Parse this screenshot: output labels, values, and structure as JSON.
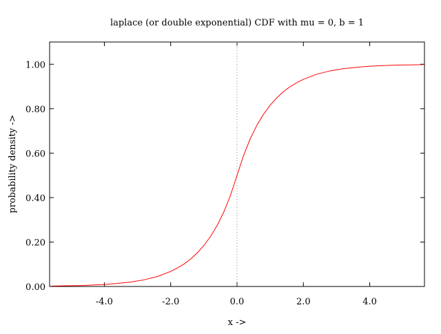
{
  "chart_data": {
    "type": "line",
    "title": "laplace (or double exponential) CDF with mu = 0, b = 1",
    "xlabel": "x ->",
    "ylabel": "probability density ->",
    "xlim": [
      -5.65,
      5.65
    ],
    "ylim": [
      0.0,
      1.1
    ],
    "x_ticks": [
      -4.0,
      -2.0,
      0.0,
      2.0,
      4.0
    ],
    "x_tick_labels": [
      "-4.0",
      "-2.0",
      "0.0",
      "2.0",
      "4.0"
    ],
    "y_ticks": [
      0.0,
      0.2,
      0.4,
      0.6,
      0.8,
      1.0
    ],
    "y_tick_labels": [
      "0.00",
      "0.20",
      "0.40",
      "0.60",
      "0.80",
      "1.00"
    ],
    "grid": false,
    "legend": "none",
    "series": [
      {
        "color": "#ff0000",
        "x": [
          -5.6,
          -5.2,
          -4.8,
          -4.4,
          -4.0,
          -3.6,
          -3.2,
          -2.8,
          -2.4,
          -2.0,
          -1.8,
          -1.6,
          -1.4,
          -1.2,
          -1.0,
          -0.8,
          -0.6,
          -0.4,
          -0.2,
          0.0,
          0.2,
          0.4,
          0.6,
          0.8,
          1.0,
          1.2,
          1.4,
          1.6,
          1.8,
          2.0,
          2.4,
          2.8,
          3.2,
          3.6,
          4.0,
          4.4,
          4.8,
          5.2,
          5.6
        ],
        "y": [
          0.002,
          0.003,
          0.004,
          0.006,
          0.009,
          0.014,
          0.02,
          0.03,
          0.045,
          0.068,
          0.083,
          0.101,
          0.123,
          0.151,
          0.184,
          0.225,
          0.274,
          0.335,
          0.409,
          0.5,
          0.591,
          0.665,
          0.726,
          0.775,
          0.816,
          0.849,
          0.877,
          0.899,
          0.917,
          0.932,
          0.955,
          0.97,
          0.98,
          0.986,
          0.991,
          0.994,
          0.996,
          0.997,
          0.998
        ]
      }
    ],
    "reference_line": {
      "x": 0.0,
      "style": "dotted",
      "color": "#888888"
    }
  }
}
